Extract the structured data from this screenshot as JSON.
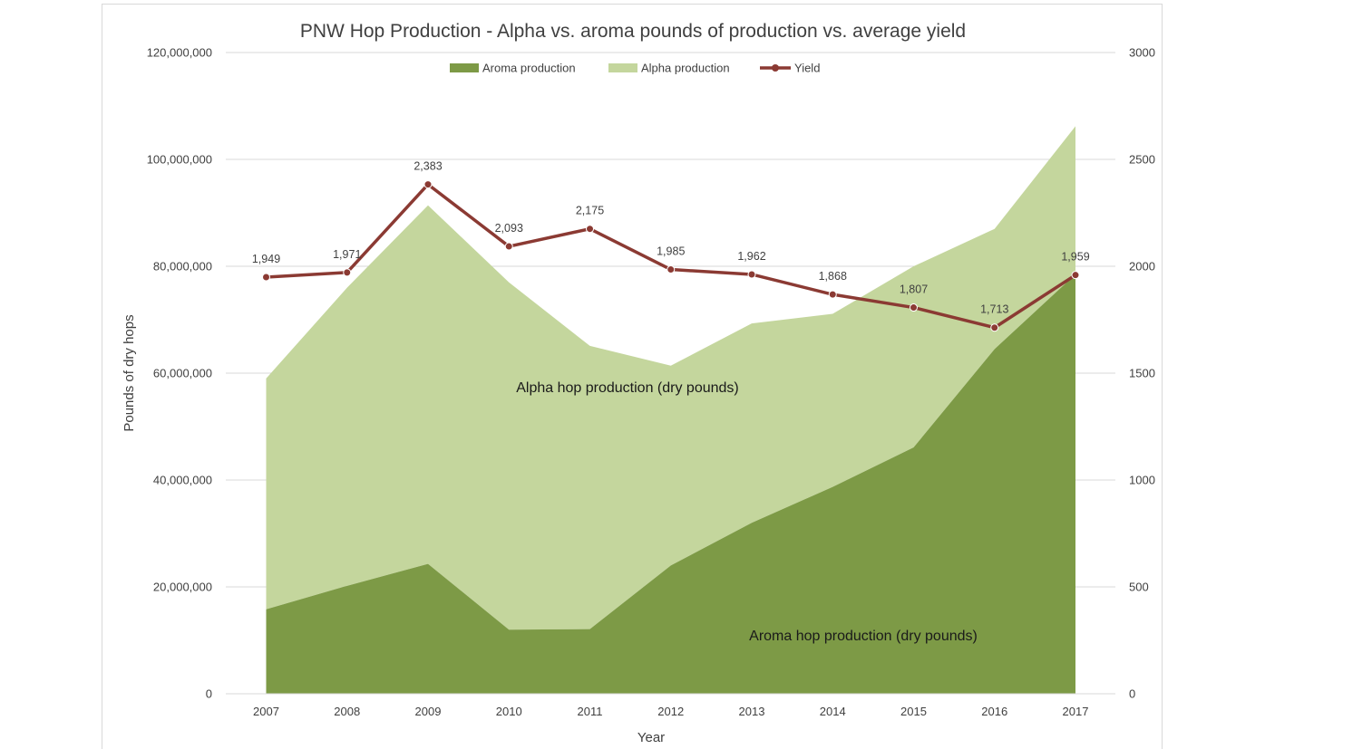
{
  "chart_data": {
    "type": "area",
    "title": "PNW Hop Production - Alpha vs. aroma pounds of production vs. average yield",
    "xlabel": "Year",
    "ylabel": "Pounds of dry hops",
    "y2label": "",
    "categories": [
      "2007",
      "2008",
      "2009",
      "2010",
      "2011",
      "2012",
      "2013",
      "2014",
      "2015",
      "2016",
      "2017"
    ],
    "ylim": [
      0,
      120000000
    ],
    "y2lim": [
      0,
      3000
    ],
    "y_ticks": [
      "0",
      "20,000,000",
      "40,000,000",
      "60,000,000",
      "80,000,000",
      "100,000,000",
      "120,000,000"
    ],
    "y2_ticks": [
      "0",
      "500",
      "1000",
      "1500",
      "2000",
      "2500",
      "3000"
    ],
    "grid": true,
    "legend_position": "top",
    "series": [
      {
        "name": "Aroma production",
        "type": "area",
        "axis": "left",
        "color": "#7d9a46",
        "values": [
          15800000,
          20200000,
          24300000,
          12000000,
          12100000,
          24000000,
          32000000,
          38700000,
          46100000,
          64500000,
          78500000
        ]
      },
      {
        "name": "Alpha production",
        "type": "area",
        "axis": "left",
        "color": "#c4d69d",
        "values": [
          43200000,
          55800000,
          67100000,
          65000000,
          53000000,
          37400000,
          37300000,
          32400000,
          33900000,
          22500000,
          27700000
        ]
      },
      {
        "name": "Yield",
        "type": "line",
        "axis": "right",
        "color": "#8b3a33",
        "values": [
          1949,
          1971,
          2383,
          2093,
          2175,
          1985,
          1962,
          1868,
          1807,
          1713,
          1959
        ],
        "labels": [
          "1,949",
          "1,971",
          "2,383",
          "2,093",
          "2,175",
          "1,985",
          "1,962",
          "1,868",
          "1,807",
          "1,713",
          "1,959"
        ]
      }
    ],
    "annotations": [
      {
        "text": "Alpha hop production (dry pounds)"
      },
      {
        "text": "Aroma hop production (dry pounds)"
      }
    ]
  }
}
